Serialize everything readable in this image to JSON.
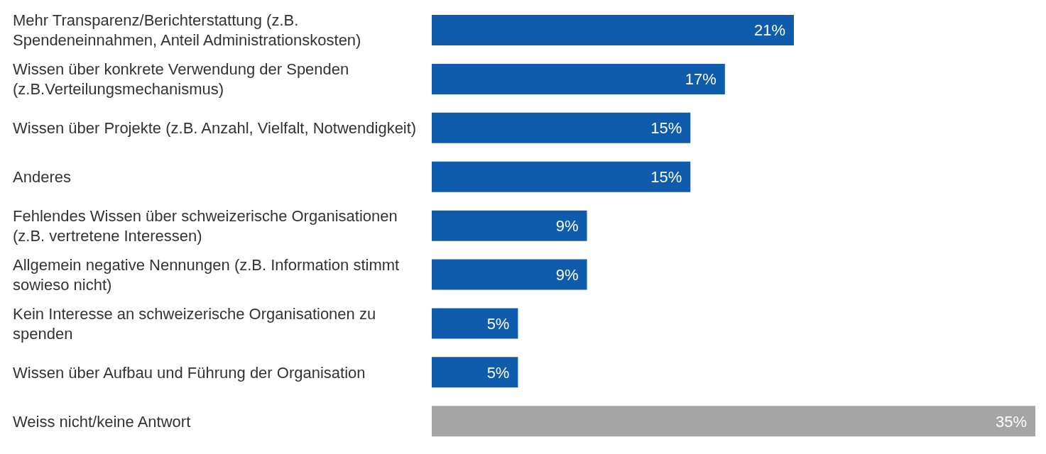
{
  "chart_data": {
    "type": "bar",
    "orientation": "horizontal",
    "categories": [
      "Mehr Transparenz/Berichterstattung (z.B. Spendeneinnahmen, Anteil Administrationskosten)",
      "Wissen über konkrete Verwendung der Spenden (z.B.Verteilungsmechanismus)",
      "Wissen über Projekte (z.B. Anzahl, Vielfalt, Notwendigkeit)",
      "Anderes",
      "Fehlendes Wissen über schweizerische Organisationen (z.B. vertretene Interessen)",
      "Allgemein negative Nennungen (z.B. Information stimmt sowieso nicht)",
      "Kein Interesse an schweizerische Organisationen zu spenden",
      "Wissen über Aufbau und Führung der Organisation",
      "Weiss nicht/keine Antwort"
    ],
    "values": [
      21,
      17,
      15,
      15,
      9,
      9,
      5,
      5,
      35
    ],
    "value_labels": [
      "21%",
      "17%",
      "15%",
      "15%",
      "9%",
      "9%",
      "5%",
      "5%",
      "35%"
    ],
    "colors": [
      "#0f5cad",
      "#0f5cad",
      "#0f5cad",
      "#0f5cad",
      "#0f5cad",
      "#0f5cad",
      "#0f5cad",
      "#0f5cad",
      "#a5a5a5"
    ],
    "xlim": [
      0,
      35
    ],
    "tick_labels": "y"
  }
}
